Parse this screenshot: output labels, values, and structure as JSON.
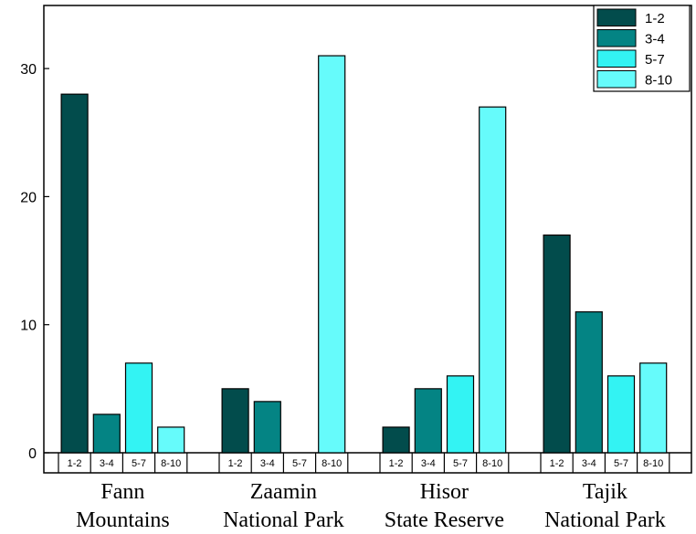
{
  "chart_data": {
    "type": "bar",
    "title": "",
    "xlabel": "",
    "ylabel": "",
    "ylim": [
      0,
      34.5
    ],
    "yticks": [
      0,
      10,
      20,
      30
    ],
    "groups": [
      {
        "line1": "Fann",
        "line2": "Mountains"
      },
      {
        "line1": "Zaamin",
        "line2": "National Park"
      },
      {
        "line1": "Hisor",
        "line2": "State Reserve"
      },
      {
        "line1": "Tajik",
        "line2": "National Park"
      }
    ],
    "categories": [
      "Fann Mountains",
      "Zaamin National Park",
      "Hisor State Reserve",
      "Tajik National Park"
    ],
    "series": [
      {
        "name": "1-2",
        "color": "#024c4c",
        "values": [
          28,
          5,
          2,
          17
        ]
      },
      {
        "name": "3-4",
        "color": "#048484",
        "values": [
          3,
          4,
          5,
          11
        ]
      },
      {
        "name": "5-7",
        "color": "#33f3f3",
        "values": [
          7,
          0,
          6,
          6
        ]
      },
      {
        "name": "8-10",
        "color": "#66fbfb",
        "values": [
          2,
          31,
          27,
          7
        ]
      }
    ],
    "sub_labels": [
      "1-2",
      "3-4",
      "5-7",
      "8-10"
    ],
    "legend_position": "top-right"
  }
}
